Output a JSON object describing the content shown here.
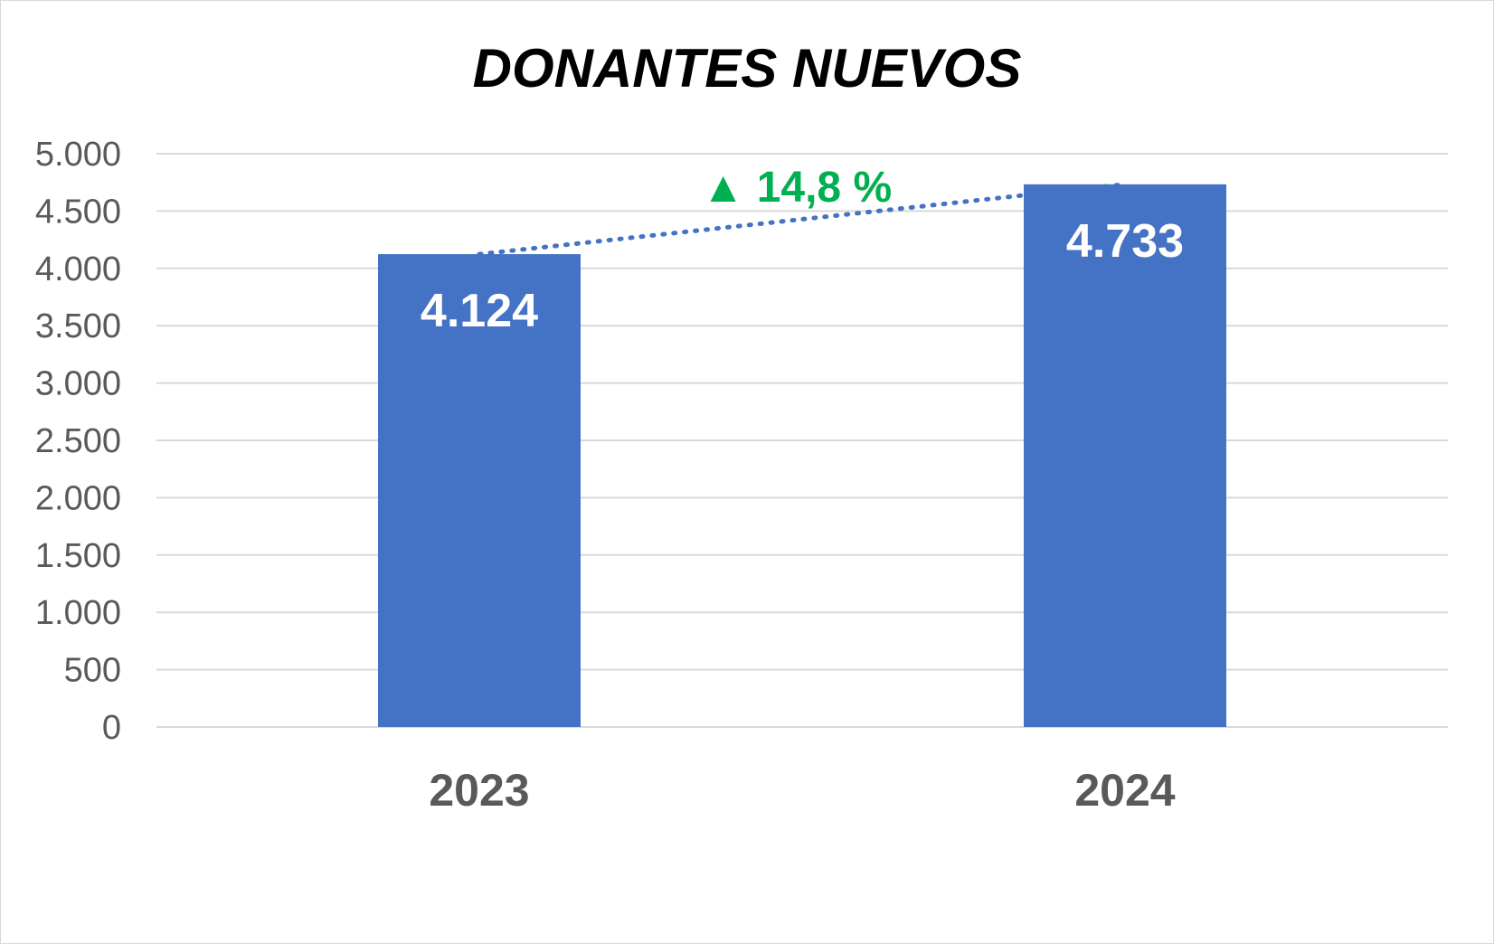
{
  "chart_data": {
    "type": "bar",
    "title": "DONANTES NUEVOS",
    "categories": [
      "2023",
      "2024"
    ],
    "values": [
      4124,
      4733
    ],
    "value_labels": [
      "4.124",
      "4.733"
    ],
    "ylim": [
      0,
      5000
    ],
    "yticks": [
      0,
      500,
      1000,
      1500,
      2000,
      2500,
      3000,
      3500,
      4000,
      4500,
      5000
    ],
    "ytick_labels": [
      "0",
      "500",
      "1.000",
      "1.500",
      "2.000",
      "2.500",
      "3.000",
      "3.500",
      "4.000",
      "4.500",
      "5.000"
    ],
    "grid": true,
    "legend": "none",
    "trendline": "dotted",
    "annotation": {
      "text": "▲ 14,8 %",
      "color": "#00b050"
    },
    "bar_color": "#4472c4",
    "grid_color": "#d9d9d9"
  }
}
